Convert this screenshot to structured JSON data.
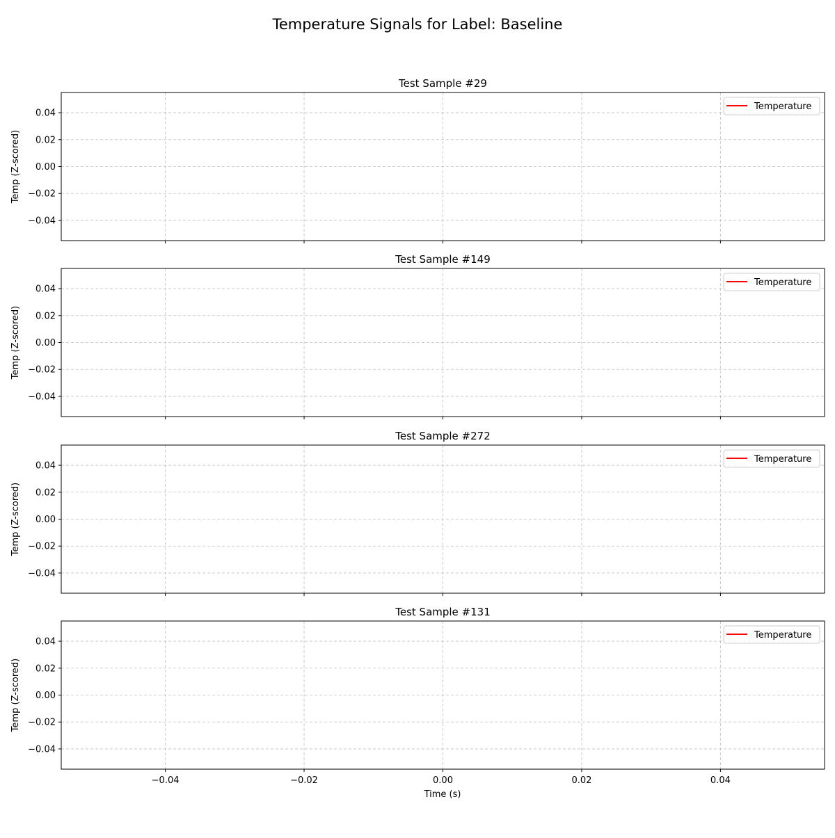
{
  "chart_data": {
    "type": "line",
    "suptitle": "Temperature Signals for Label: Baseline",
    "xlabel": "Time (s)",
    "xlim": [
      -0.055,
      0.055
    ],
    "x_ticks": [
      -0.04,
      -0.02,
      0.0,
      0.02,
      0.04
    ],
    "x_tick_labels": [
      "−0.04",
      "−0.02",
      "0.00",
      "0.02",
      "0.04"
    ],
    "grid": true,
    "legend_position": "top-right",
    "line_color": "#ff0000",
    "panels": [
      {
        "title": "Test Sample #29",
        "ylabel": "Temp (Z-scored)",
        "ylim": [
          -0.055,
          0.055
        ],
        "y_ticks": [
          0.04,
          0.02,
          0.0,
          -0.02,
          -0.04
        ],
        "y_tick_labels": [
          "0.04",
          "0.02",
          "0.00",
          "−0.02",
          "−0.04"
        ],
        "series": [
          {
            "name": "Temperature",
            "x": [],
            "y": []
          }
        ]
      },
      {
        "title": "Test Sample #149",
        "ylabel": "Temp (Z-scored)",
        "ylim": [
          -0.055,
          0.055
        ],
        "y_ticks": [
          0.04,
          0.02,
          0.0,
          -0.02,
          -0.04
        ],
        "y_tick_labels": [
          "0.04",
          "0.02",
          "0.00",
          "−0.02",
          "−0.04"
        ],
        "series": [
          {
            "name": "Temperature",
            "x": [],
            "y": []
          }
        ]
      },
      {
        "title": "Test Sample #272",
        "ylabel": "Temp (Z-scored)",
        "ylim": [
          -0.055,
          0.055
        ],
        "y_ticks": [
          0.04,
          0.02,
          0.0,
          -0.02,
          -0.04
        ],
        "y_tick_labels": [
          "0.04",
          "0.02",
          "0.00",
          "−0.02",
          "−0.04"
        ],
        "series": [
          {
            "name": "Temperature",
            "x": [],
            "y": []
          }
        ]
      },
      {
        "title": "Test Sample #131",
        "ylabel": "Temp (Z-scored)",
        "ylim": [
          -0.055,
          0.055
        ],
        "y_ticks": [
          0.04,
          0.02,
          0.0,
          -0.02,
          -0.04
        ],
        "y_tick_labels": [
          "0.04",
          "0.02",
          "0.00",
          "−0.02",
          "−0.04"
        ],
        "series": [
          {
            "name": "Temperature",
            "x": [],
            "y": []
          }
        ]
      }
    ]
  }
}
